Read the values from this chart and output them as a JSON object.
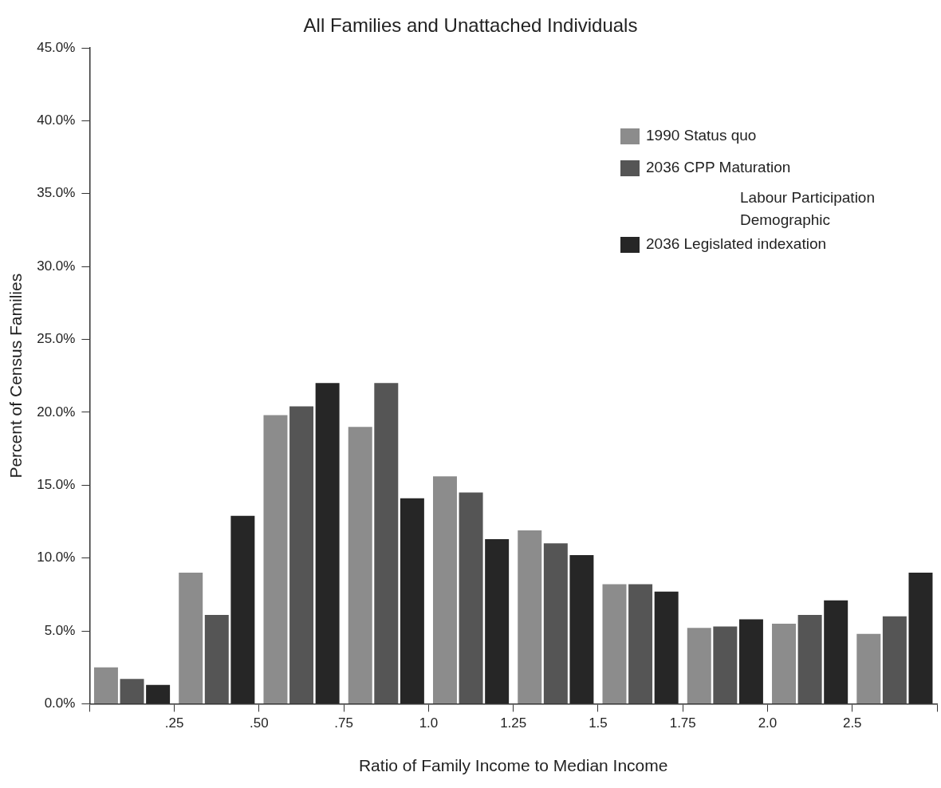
{
  "chart_data": {
    "type": "bar",
    "title": "All Families and Unattached Individuals",
    "xlabel": "Ratio of Family Income to Median Income",
    "ylabel": "Percent of Census Families",
    "categories": [
      null,
      null,
      null,
      null,
      null,
      null,
      null,
      null,
      null,
      null
    ],
    "ylim": [
      0,
      45
    ],
    "yticks": [
      {
        "value": 0,
        "label": "0.0%"
      },
      {
        "value": 5,
        "label": "5.0%"
      },
      {
        "value": 10,
        "label": "10.0%"
      },
      {
        "value": 15,
        "label": "15.0%"
      },
      {
        "value": 20,
        "label": "20.0%"
      },
      {
        "value": 25,
        "label": "25.0%"
      },
      {
        "value": 30,
        "label": "30.0%"
      },
      {
        "value": 35,
        "label": "35.0%"
      },
      {
        "value": 40,
        "label": "40.0%"
      },
      {
        "value": 45,
        "label": "45.0%"
      }
    ],
    "series": [
      {
        "name": "1990 Status quo",
        "color": "#8c8c8c",
        "values": [
          2.5,
          9.0,
          19.8,
          19.0,
          15.6,
          11.9,
          8.2,
          5.2,
          5.5,
          4.8
        ]
      },
      {
        "name": "2036 CPP Maturation",
        "color": "#555555",
        "values": [
          1.7,
          6.1,
          20.4,
          22.0,
          14.5,
          11.0,
          8.2,
          5.3,
          6.1,
          6.0
        ]
      },
      {
        "name": "2036 Legislated indexation",
        "color": "#262626",
        "values": [
          1.3,
          12.9,
          22.0,
          14.1,
          11.3,
          10.2,
          7.7,
          5.8,
          7.1,
          9.0
        ]
      }
    ],
    "annotations": [
      ".25",
      ".50",
      ".75",
      "1.0",
      "1.25",
      "1.5",
      "1.75",
      "2.0",
      "2.5",
      "Labour Participation",
      "Demographic"
    ],
    "legend": "top right",
    "grid": false
  }
}
